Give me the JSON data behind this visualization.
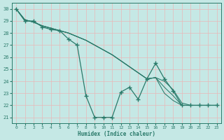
{
  "xlabel": "Humidex (Indice chaleur)",
  "bg_color": "#c5e8e5",
  "grid_color": "#e8b8b8",
  "line_color": "#2a7a6a",
  "xlim": [
    -0.5,
    23.5
  ],
  "ylim": [
    20.5,
    30.5
  ],
  "xticks": [
    0,
    1,
    2,
    3,
    4,
    5,
    6,
    7,
    8,
    9,
    10,
    11,
    12,
    13,
    14,
    15,
    16,
    17,
    18,
    19,
    20,
    21,
    22,
    23
  ],
  "yticks": [
    21,
    22,
    23,
    24,
    25,
    26,
    27,
    28,
    29,
    30
  ],
  "series_jagged": [
    30,
    29,
    29,
    28.5,
    28.3,
    28.2,
    27.5,
    27,
    22.8,
    21.0,
    21.0,
    21.0,
    23.1,
    23.5,
    22.5,
    24.2,
    25.5,
    24.2,
    23.2,
    22,
    22,
    22,
    22,
    22
  ],
  "series_smooth": [
    [
      30,
      29.1,
      28.9,
      28.6,
      28.4,
      28.2,
      28.0,
      27.7,
      27.4,
      27.0,
      26.6,
      26.2,
      25.7,
      25.2,
      24.7,
      24.2,
      24.3,
      24.0,
      23.3,
      22.2,
      22.0,
      22.0,
      22.0,
      22.0
    ],
    [
      30,
      29.1,
      28.9,
      28.6,
      28.4,
      28.2,
      28.0,
      27.7,
      27.4,
      27.0,
      26.6,
      26.2,
      25.7,
      25.2,
      24.7,
      24.2,
      24.3,
      23.5,
      22.8,
      22.0,
      22.0,
      22.0,
      22.0,
      22.0
    ],
    [
      30,
      29.1,
      28.9,
      28.6,
      28.4,
      28.2,
      28.0,
      27.7,
      27.4,
      27.0,
      26.6,
      26.2,
      25.7,
      25.2,
      24.7,
      24.2,
      24.3,
      23.0,
      22.4,
      22.0,
      22.0,
      22.0,
      22.0,
      22.0
    ]
  ]
}
